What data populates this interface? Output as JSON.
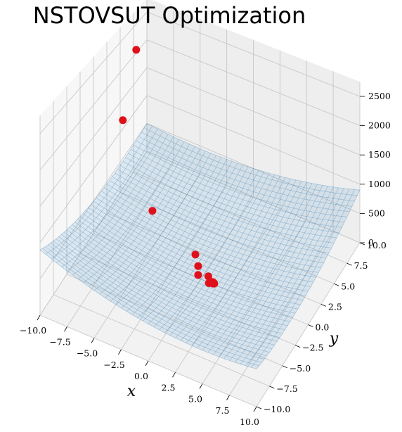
{
  "chart_data": {
    "type": "surface3d",
    "title": "NSTOVSUT Optimization",
    "xlabel": "x",
    "ylabel": "y",
    "zlabel": "",
    "xlim": [
      -10,
      10
    ],
    "ylim": [
      -10,
      10
    ],
    "zlim": [
      0,
      2500
    ],
    "x_ticks": [
      "−10.0",
      "−7.5",
      "−5.0",
      "−2.5",
      "0.0",
      "2.5",
      "5.0",
      "7.5",
      "10.0"
    ],
    "y_ticks": [
      "−10.0",
      "−7.5",
      "−5.0",
      "−2.5",
      "0.0",
      "2.5",
      "5.0",
      "7.5",
      "10.0"
    ],
    "z_ticks": [
      "0",
      "500",
      "1000",
      "1500",
      "2000",
      "2500"
    ],
    "grid": true,
    "surface": {
      "function": "x^2 + y^2 + (x + y)^2 + 300",
      "color": "#1f77b4",
      "alpha": 0.25
    },
    "points": {
      "color": "#e0101a",
      "series": [
        {
          "x": -9.5,
          "y": 7.0,
          "z": 2200
        },
        {
          "x": -9.0,
          "y": 3.5,
          "z": 1450
        },
        {
          "x": -5.0,
          "y": 1.0,
          "z": 580
        },
        {
          "x": -1.0,
          "y": 1.0,
          "z": 180
        },
        {
          "x": -0.5,
          "y": 0.5,
          "z": 100
        },
        {
          "x": -0.2,
          "y": -0.1,
          "z": 60
        },
        {
          "x": 0.5,
          "y": 0.4,
          "z": 25
        },
        {
          "x": 0.8,
          "y": -0.1,
          "z": 5
        },
        {
          "x": 1.0,
          "y": 0.2,
          "z": 0
        },
        {
          "x": 1.1,
          "y": 0.05,
          "z": 0
        },
        {
          "x": 1.2,
          "y": 0.1,
          "z": 0
        },
        {
          "x": 1.15,
          "y": 0.15,
          "z": 0
        }
      ]
    }
  }
}
